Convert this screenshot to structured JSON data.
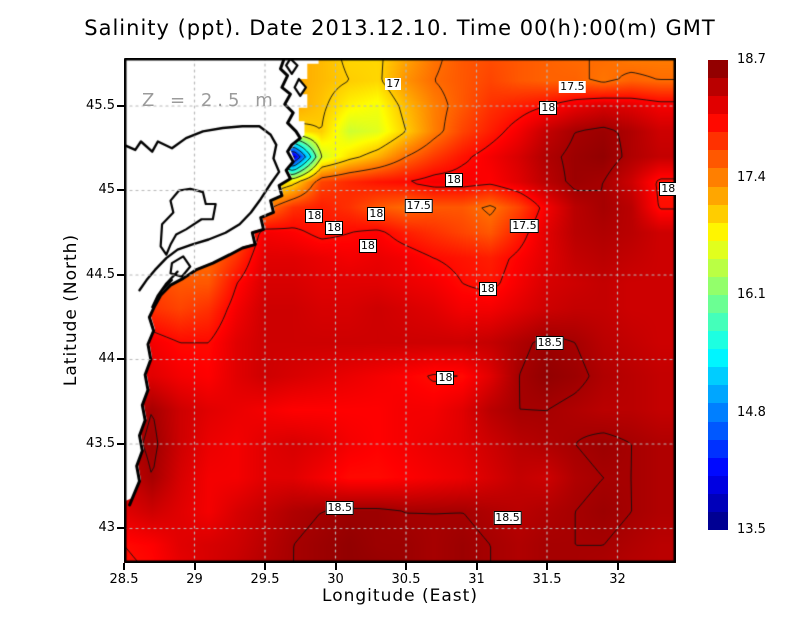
{
  "title": "Salinity (ppt). Date 2013.12.10. Time 00(h):00(m) GMT",
  "annotation": "Z = 2.5 m",
  "axes": {
    "x_label": "Longitude (East)",
    "y_label": "Latitude (North)",
    "x_ticks": [
      28.5,
      29,
      29.5,
      30,
      30.5,
      31,
      31.5,
      32
    ],
    "y_ticks": [
      45.5,
      45,
      44.5,
      44,
      43.5,
      43
    ],
    "x_range": [
      28.5,
      32.41
    ],
    "y_range": [
      42.8,
      45.78
    ],
    "grid": "dotted-gray"
  },
  "colorbar": {
    "min": 13.5,
    "max": 18.7,
    "tick_values": [
      18.7,
      17.4,
      16.1,
      14.8,
      13.5
    ],
    "segments": 26,
    "colormap": "jet",
    "units": "ppt"
  },
  "colors": {
    "grid": "#b8b8b8",
    "frame": "#000000",
    "land": "#ffffff",
    "coast": "#000000",
    "annotation": "#9b9b9b",
    "contour": "#111111"
  },
  "chart_data": {
    "type": "heatmap",
    "quantity": "Salinity",
    "units": "ppt",
    "depth_m": 2.5,
    "date": "2013.12.10",
    "time": "00:00 GMT",
    "lon": [
      28.5,
      28.7,
      28.9,
      29.1,
      29.3,
      29.5,
      29.7,
      29.9,
      30.1,
      30.3,
      30.5,
      30.7,
      30.9,
      31.1,
      31.3,
      31.5,
      31.7,
      31.9,
      32.1,
      32.3
    ],
    "lat": [
      45.8,
      45.65,
      45.5,
      45.35,
      45.2,
      45.05,
      44.9,
      44.75,
      44.6,
      44.45,
      44.3,
      44.1,
      43.9,
      43.7,
      43.5,
      43.3,
      43.1,
      42.9,
      42.7
    ],
    "values": [
      [
        17.4,
        17.4,
        17.4,
        17.3,
        17.3,
        17.2,
        17.2,
        17.1,
        16.95,
        16.95,
        17.2,
        17.45,
        17.6,
        17.65,
        17.6,
        17.55,
        17.5,
        17.5,
        17.4,
        17.4
      ],
      [
        17.5,
        17.5,
        17.5,
        17.4,
        17.4,
        17.3,
        17.2,
        17.1,
        17.0,
        16.95,
        17.3,
        17.5,
        17.6,
        17.7,
        17.6,
        17.55,
        17.55,
        17.45,
        17.55,
        17.5
      ],
      [
        17.6,
        17.6,
        17.6,
        17.5,
        17.5,
        17.4,
        17.2,
        17.05,
        16.8,
        16.7,
        17.1,
        17.4,
        17.6,
        17.8,
        17.9,
        18.0,
        18.15,
        18.25,
        18.2,
        18.1
      ],
      [
        17.6,
        17.6,
        17.6,
        17.5,
        17.5,
        17.3,
        16.9,
        17.0,
        16.5,
        16.6,
        17.0,
        17.4,
        17.7,
        17.9,
        18.1,
        18.35,
        18.5,
        18.55,
        18.45,
        18.3
      ],
      [
        17.5,
        17.5,
        17.5,
        17.4,
        17.3,
        16.0,
        13.8,
        16.5,
        16.9,
        17.15,
        17.5,
        17.75,
        17.95,
        18.1,
        18.25,
        18.45,
        18.55,
        18.6,
        18.45,
        18.35
      ],
      [
        17.4,
        17.4,
        17.4,
        17.3,
        17.2,
        16.6,
        16.9,
        17.7,
        17.85,
        17.95,
        18.0,
        18.1,
        18.1,
        18.05,
        18.2,
        18.4,
        18.55,
        18.5,
        18.3,
        17.95
      ],
      [
        17.4,
        17.4,
        17.3,
        17.3,
        17.2,
        17.4,
        17.8,
        17.9,
        17.8,
        17.6,
        17.5,
        17.6,
        17.6,
        17.45,
        17.7,
        18.1,
        18.4,
        18.5,
        18.4,
        17.98
      ],
      [
        17.5,
        17.5,
        17.4,
        17.4,
        17.6,
        18.1,
        18.05,
        17.95,
        18.0,
        18.05,
        17.9,
        17.8,
        17.7,
        17.6,
        17.9,
        18.2,
        18.4,
        18.45,
        18.4,
        18.3
      ],
      [
        17.6,
        17.6,
        17.5,
        17.5,
        17.8,
        18.2,
        18.2,
        18.15,
        18.1,
        18.15,
        18.1,
        18.0,
        17.95,
        17.9,
        18.05,
        18.2,
        18.35,
        18.4,
        18.35,
        18.3
      ],
      [
        17.7,
        17.7,
        17.6,
        17.6,
        18.0,
        18.25,
        18.25,
        18.2,
        18.2,
        18.2,
        18.15,
        18.1,
        18.0,
        17.95,
        18.1,
        18.25,
        18.3,
        18.35,
        18.3,
        18.3
      ],
      [
        17.8,
        17.8,
        17.7,
        17.8,
        18.1,
        18.3,
        18.3,
        18.25,
        18.25,
        18.3,
        18.25,
        18.2,
        18.1,
        18.1,
        18.2,
        18.3,
        18.35,
        18.35,
        18.3,
        18.3
      ],
      [
        18.0,
        18.1,
        18.0,
        18.0,
        18.2,
        18.3,
        18.3,
        18.3,
        18.3,
        18.3,
        18.3,
        18.3,
        18.3,
        18.35,
        18.45,
        18.55,
        18.5,
        18.4,
        18.35,
        18.3
      ],
      [
        18.1,
        18.2,
        18.1,
        18.05,
        18.2,
        18.3,
        18.25,
        18.2,
        18.15,
        18.1,
        18.05,
        17.98,
        18.0,
        18.2,
        18.5,
        18.6,
        18.55,
        18.45,
        18.4,
        18.35
      ],
      [
        18.35,
        18.5,
        18.3,
        18.2,
        18.15,
        18.1,
        18.05,
        18.05,
        18.05,
        18.05,
        18.1,
        18.1,
        18.2,
        18.4,
        18.5,
        18.5,
        18.45,
        18.4,
        18.4,
        18.35
      ],
      [
        18.4,
        18.55,
        18.3,
        18.15,
        18.1,
        18.2,
        18.25,
        18.2,
        18.1,
        18.05,
        18.1,
        18.15,
        18.2,
        18.3,
        18.4,
        18.45,
        18.5,
        18.55,
        18.5,
        18.45
      ],
      [
        18.3,
        18.5,
        18.25,
        18.1,
        18.1,
        18.2,
        18.2,
        18.1,
        18.0,
        18.0,
        18.05,
        18.1,
        18.15,
        18.25,
        18.35,
        18.3,
        18.45,
        18.5,
        18.5,
        18.45
      ],
      [
        18.2,
        18.3,
        18.2,
        18.1,
        18.25,
        18.35,
        18.45,
        18.5,
        18.55,
        18.55,
        18.5,
        18.5,
        18.5,
        18.45,
        18.4,
        18.45,
        18.5,
        18.55,
        18.5,
        18.45
      ],
      [
        18.0,
        18.05,
        18.2,
        18.25,
        18.3,
        18.4,
        18.5,
        18.55,
        18.6,
        18.55,
        18.55,
        18.5,
        18.55,
        18.5,
        18.45,
        18.5,
        18.5,
        18.5,
        18.45,
        18.4
      ],
      [
        17.95,
        18.0,
        18.15,
        18.25,
        18.35,
        18.45,
        18.5,
        18.55,
        18.6,
        18.6,
        18.55,
        18.5,
        18.55,
        18.5,
        18.45,
        18.5,
        18.5,
        18.45,
        18.4,
        18.4
      ]
    ],
    "contour_levels": [
      14,
      14.5,
      15,
      15.5,
      16,
      16.5,
      17,
      17.5,
      18,
      18.5
    ],
    "contour_labels": [
      {
        "text": "17",
        "lon": 30.41,
        "lat": 45.63,
        "boxed": false
      },
      {
        "text": "17.5",
        "lon": 31.68,
        "lat": 45.61,
        "boxed": false
      },
      {
        "text": "18",
        "lon": 31.51,
        "lat": 45.49,
        "boxed": true
      },
      {
        "text": "18",
        "lon": 32.36,
        "lat": 45.01,
        "boxed": true
      },
      {
        "text": "18",
        "lon": 30.84,
        "lat": 45.06,
        "boxed": true
      },
      {
        "text": "17.5",
        "lon": 30.59,
        "lat": 44.91,
        "boxed": true
      },
      {
        "text": "17.5",
        "lon": 31.34,
        "lat": 44.79,
        "boxed": true
      },
      {
        "text": "18",
        "lon": 29.85,
        "lat": 44.85,
        "boxed": true
      },
      {
        "text": "18",
        "lon": 29.99,
        "lat": 44.78,
        "boxed": true
      },
      {
        "text": "18",
        "lon": 30.29,
        "lat": 44.86,
        "boxed": true
      },
      {
        "text": "18",
        "lon": 30.23,
        "lat": 44.67,
        "boxed": true
      },
      {
        "text": "18",
        "lon": 31.08,
        "lat": 44.42,
        "boxed": true
      },
      {
        "text": "18.5",
        "lon": 31.52,
        "lat": 44.1,
        "boxed": true
      },
      {
        "text": "18",
        "lon": 30.78,
        "lat": 43.89,
        "boxed": true
      },
      {
        "text": "18.5",
        "lon": 30.03,
        "lat": 43.12,
        "boxed": true
      },
      {
        "text": "18.5",
        "lon": 31.22,
        "lat": 43.06,
        "boxed": true
      }
    ],
    "coast": {
      "land_polygon": [
        [
          28.5,
          45.79
        ],
        [
          29.88,
          45.79
        ],
        [
          29.88,
          45.75
        ],
        [
          29.8,
          45.75
        ],
        [
          29.8,
          45.66
        ],
        [
          29.74,
          45.66
        ],
        [
          29.74,
          45.57
        ],
        [
          29.8,
          45.57
        ],
        [
          29.8,
          45.49
        ],
        [
          29.74,
          45.49
        ],
        [
          29.74,
          45.41
        ],
        [
          29.78,
          45.41
        ],
        [
          29.78,
          45.33
        ],
        [
          29.72,
          45.28
        ],
        [
          29.68,
          45.24
        ],
        [
          29.71,
          45.18
        ],
        [
          29.66,
          45.13
        ],
        [
          29.69,
          45.08
        ],
        [
          29.61,
          45.04
        ],
        [
          29.63,
          44.98
        ],
        [
          29.55,
          44.95
        ],
        [
          29.57,
          44.88
        ],
        [
          29.48,
          44.85
        ],
        [
          29.5,
          44.78
        ],
        [
          29.42,
          44.76
        ],
        [
          29.44,
          44.69
        ],
        [
          29.35,
          44.67
        ],
        [
          29.26,
          44.63
        ],
        [
          29.14,
          44.58
        ],
        [
          29.02,
          44.54
        ],
        [
          28.93,
          44.49
        ],
        [
          28.84,
          44.45
        ],
        [
          28.77,
          44.39
        ],
        [
          28.73,
          44.33
        ],
        [
          28.69,
          44.26
        ],
        [
          28.72,
          44.18
        ],
        [
          28.68,
          44.1
        ],
        [
          28.7,
          44.01
        ],
        [
          28.66,
          43.92
        ],
        [
          28.68,
          43.83
        ],
        [
          28.64,
          43.74
        ],
        [
          28.66,
          43.65
        ],
        [
          28.62,
          43.56
        ],
        [
          28.64,
          43.47
        ],
        [
          28.6,
          43.38
        ],
        [
          28.62,
          43.29
        ],
        [
          28.58,
          43.21
        ],
        [
          28.56,
          43.18
        ],
        [
          28.5,
          43.16
        ]
      ],
      "coastline": [
        [
          29.64,
          45.79
        ],
        [
          29.61,
          45.72
        ],
        [
          29.66,
          45.68
        ],
        [
          29.62,
          45.61
        ],
        [
          29.68,
          45.57
        ],
        [
          29.64,
          45.51
        ],
        [
          29.7,
          45.46
        ],
        [
          29.66,
          45.4
        ],
        [
          29.72,
          45.35
        ],
        [
          29.75,
          45.31
        ],
        [
          29.69,
          45.27
        ],
        [
          29.66,
          45.23
        ],
        [
          29.7,
          45.17
        ],
        [
          29.65,
          45.12
        ],
        [
          29.68,
          45.07
        ],
        [
          29.6,
          45.03
        ],
        [
          29.62,
          44.97
        ],
        [
          29.54,
          44.94
        ],
        [
          29.56,
          44.87
        ],
        [
          29.47,
          44.84
        ],
        [
          29.49,
          44.77
        ],
        [
          29.41,
          44.75
        ],
        [
          29.43,
          44.68
        ],
        [
          29.34,
          44.66
        ],
        [
          29.25,
          44.62
        ],
        [
          29.13,
          44.57
        ],
        [
          29.01,
          44.53
        ],
        [
          28.92,
          44.48
        ],
        [
          28.83,
          44.44
        ],
        [
          28.76,
          44.38
        ],
        [
          28.72,
          44.32
        ],
        [
          28.68,
          44.25
        ],
        [
          28.71,
          44.17
        ],
        [
          28.67,
          44.09
        ],
        [
          28.69,
          44.0
        ],
        [
          28.65,
          43.91
        ],
        [
          28.67,
          43.82
        ],
        [
          28.63,
          43.73
        ],
        [
          28.65,
          43.64
        ],
        [
          28.61,
          43.55
        ],
        [
          28.63,
          43.46
        ],
        [
          28.59,
          43.37
        ],
        [
          28.61,
          43.28
        ],
        [
          28.57,
          43.2
        ],
        [
          28.54,
          43.14
        ]
      ],
      "delta_outline": [
        [
          28.5,
          45.27
        ],
        [
          28.58,
          45.24
        ],
        [
          28.62,
          45.29
        ],
        [
          28.7,
          45.23
        ],
        [
          28.74,
          45.29
        ],
        [
          28.84,
          45.25
        ],
        [
          28.94,
          45.31
        ],
        [
          29.06,
          45.35
        ],
        [
          29.2,
          45.37
        ],
        [
          29.34,
          45.38
        ],
        [
          29.46,
          45.38
        ],
        [
          29.54,
          45.33
        ],
        [
          29.58,
          45.27
        ],
        [
          29.56,
          45.19
        ],
        [
          29.6,
          45.11
        ],
        [
          29.54,
          45.04
        ],
        [
          29.47,
          44.95
        ],
        [
          29.4,
          44.87
        ],
        [
          29.32,
          44.8
        ],
        [
          29.22,
          44.75
        ],
        [
          29.1,
          44.71
        ],
        [
          28.98,
          44.68
        ],
        [
          28.88,
          44.65
        ],
        [
          28.8,
          44.6
        ],
        [
          28.72,
          44.53
        ],
        [
          28.66,
          44.47
        ],
        [
          28.61,
          44.41
        ]
      ],
      "lagoons": [
        [
          [
            28.89,
            45.0
          ],
          [
            28.97,
            45.01
          ],
          [
            29.06,
            44.99
          ],
          [
            29.08,
            44.92
          ],
          [
            29.15,
            44.92
          ],
          [
            29.13,
            44.83
          ],
          [
            29.05,
            44.83
          ],
          [
            28.94,
            44.77
          ],
          [
            28.87,
            44.74
          ],
          [
            28.83,
            44.68
          ],
          [
            28.8,
            44.62
          ],
          [
            28.76,
            44.67
          ],
          [
            28.77,
            44.8
          ],
          [
            28.85,
            44.87
          ],
          [
            28.83,
            44.94
          ]
        ],
        [
          [
            28.84,
            44.57
          ],
          [
            28.92,
            44.61
          ],
          [
            28.97,
            44.55
          ],
          [
            28.91,
            44.49
          ],
          [
            28.83,
            44.51
          ]
        ]
      ],
      "islands": [
        [
          [
            29.68,
            45.78
          ],
          [
            29.73,
            45.74
          ],
          [
            29.69,
            45.69
          ],
          [
            29.65,
            45.74
          ]
        ],
        [
          [
            29.74,
            45.66
          ],
          [
            29.79,
            45.61
          ],
          [
            29.75,
            45.56
          ],
          [
            29.71,
            45.61
          ]
        ]
      ],
      "spits": [
        [
          [
            28.88,
            44.52
          ],
          [
            28.8,
            44.45
          ],
          [
            28.74,
            44.38
          ],
          [
            28.7,
            44.31
          ]
        ],
        [
          [
            28.84,
            44.47
          ],
          [
            28.77,
            44.41
          ],
          [
            28.72,
            44.34
          ]
        ]
      ]
    }
  }
}
